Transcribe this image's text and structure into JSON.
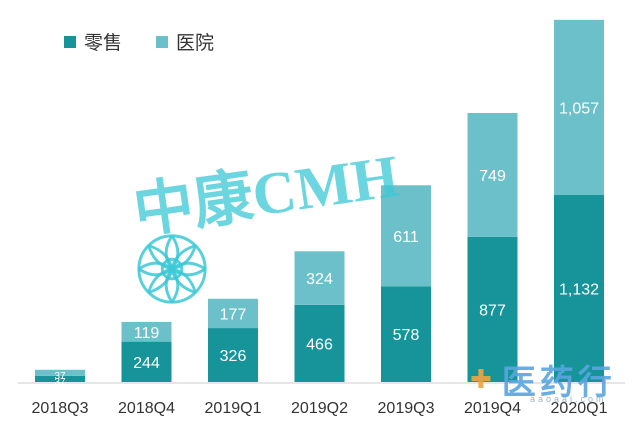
{
  "chart_data": {
    "type": "bar",
    "stacked": true,
    "categories": [
      "2018Q3",
      "2018Q4",
      "2019Q1",
      "2019Q2",
      "2019Q3",
      "2019Q4",
      "2020Q1"
    ],
    "series": [
      {
        "name": "零售",
        "color": "#17949a",
        "values": [
          37,
          244,
          326,
          466,
          578,
          877,
          1132
        ]
      },
      {
        "name": "医院",
        "color": "#6cc0c9",
        "values": [
          37,
          119,
          177,
          324,
          611,
          749,
          1057
        ]
      }
    ],
    "data_labels": {
      "零售": [
        "37",
        "244",
        "326",
        "466",
        "578",
        "877",
        "1,132"
      ],
      "医院": [
        "37",
        "119",
        "177",
        "324",
        "611",
        "749",
        "1,057"
      ]
    },
    "legend_position": "top-left",
    "grid": false,
    "ylim": [
      0,
      2200
    ]
  },
  "watermarks": {
    "brand": "中康CMH",
    "site": "医药行",
    "site_sub": "aaoaai.com"
  }
}
